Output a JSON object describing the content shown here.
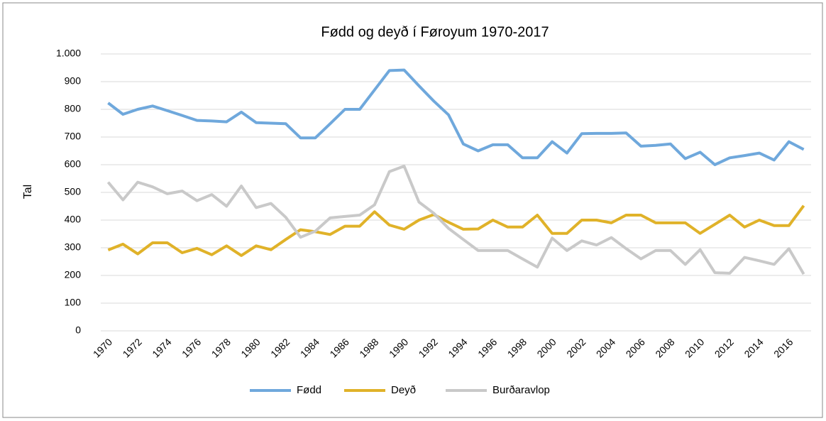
{
  "chart_data": {
    "type": "line",
    "title": "Fødd og deyð í Føroyum 1970-2017",
    "y_label": "Tal",
    "categories": [
      "1970",
      null,
      "1972",
      null,
      "1974",
      null,
      "1976",
      null,
      "1978",
      null,
      "1980",
      null,
      "1982",
      null,
      "1984",
      null,
      "1986",
      null,
      "1988",
      null,
      "1990",
      null,
      "1992",
      null,
      "1994",
      null,
      "1996",
      null,
      "1998",
      null,
      "2000",
      null,
      "2002",
      null,
      "2004",
      null,
      "2006",
      null,
      "2008",
      null,
      "2010",
      null,
      "2012",
      null,
      "2014",
      null,
      "2016",
      null
    ],
    "series": [
      {
        "name": "Fødd",
        "color": "#6fa8dc",
        "values": [
          823,
          782,
          800,
          812,
          795,
          778,
          760,
          758,
          755,
          790,
          752,
          750,
          748,
          697,
          697,
          748,
          800,
          800,
          870,
          940,
          942,
          885,
          830,
          780,
          675,
          650,
          672,
          672,
          625,
          625,
          683,
          642,
          712,
          713,
          713,
          715,
          667,
          670,
          675,
          622,
          645,
          600,
          625,
          633,
          642,
          617,
          683,
          655
        ]
      },
      {
        "name": "Deyð",
        "color": "#e0b229",
        "values": [
          292,
          313,
          278,
          318,
          318,
          282,
          298,
          275,
          307,
          272,
          307,
          293,
          330,
          365,
          358,
          348,
          378,
          378,
          430,
          382,
          367,
          400,
          420,
          392,
          367,
          368,
          400,
          375,
          375,
          418,
          352,
          352,
          400,
          400,
          390,
          418,
          418,
          390,
          390,
          390,
          352,
          385,
          418,
          375,
          400,
          380,
          380,
          452
        ]
      },
      {
        "name": "Burðaravlop",
        "color": "#c9c9c9",
        "values": [
          537,
          473,
          537,
          520,
          495,
          505,
          470,
          492,
          450,
          523,
          445,
          460,
          410,
          338,
          360,
          408,
          413,
          418,
          455,
          575,
          595,
          465,
          425,
          370,
          330,
          290,
          290,
          290,
          260,
          230,
          335,
          290,
          325,
          310,
          337,
          297,
          260,
          290,
          290,
          240,
          293,
          210,
          208,
          265,
          253,
          240,
          297,
          205
        ]
      }
    ],
    "ylim": [
      0,
      1000
    ],
    "yticks": [
      0,
      100,
      200,
      300,
      400,
      500,
      600,
      700,
      800,
      900,
      {
        "value": 1000,
        "label": "1.000"
      }
    ],
    "grid": true,
    "legend": "bottom"
  }
}
